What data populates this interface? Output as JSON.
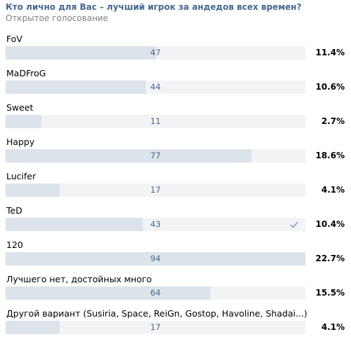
{
  "poll": {
    "question": "Кто лично для Вас – лучший игрок за андедов всех времен?",
    "type": "Открытое голосование",
    "options": [
      {
        "label": "FoV",
        "count": "47",
        "percent": "11.4%",
        "share": 11.4,
        "voted": false
      },
      {
        "label": "MaDFroG",
        "count": "44",
        "percent": "10.6%",
        "share": 10.6,
        "voted": false
      },
      {
        "label": "Sweet",
        "count": "11",
        "percent": "2.7%",
        "share": 2.7,
        "voted": false
      },
      {
        "label": "Happy",
        "count": "77",
        "percent": "18.6%",
        "share": 18.6,
        "voted": false
      },
      {
        "label": "Lucifer",
        "count": "17",
        "percent": "4.1%",
        "share": 4.1,
        "voted": false
      },
      {
        "label": "TeD",
        "count": "43",
        "percent": "10.4%",
        "share": 10.4,
        "voted": true
      },
      {
        "label": "120",
        "count": "94",
        "percent": "22.7%",
        "share": 22.7,
        "voted": false
      },
      {
        "label": "Лучшего нет, достойных много",
        "count": "64",
        "percent": "15.5%",
        "share": 15.5,
        "voted": false
      },
      {
        "label": "Другой вариант (Susiria, Space, ReiGn, Gostop, Havoline, Shadai...)",
        "count": "17",
        "percent": "4.1%",
        "share": 4.1,
        "voted": false
      }
    ],
    "max_share": 22.7,
    "colors": {
      "question": "#45688e",
      "type": "#7f7f7f",
      "bar_track": "#f2f3f5",
      "bar_fill": "#dce3ea",
      "count": "#45688e",
      "check": "#7ea1c4"
    },
    "icons": {
      "voted": "check-icon"
    }
  }
}
